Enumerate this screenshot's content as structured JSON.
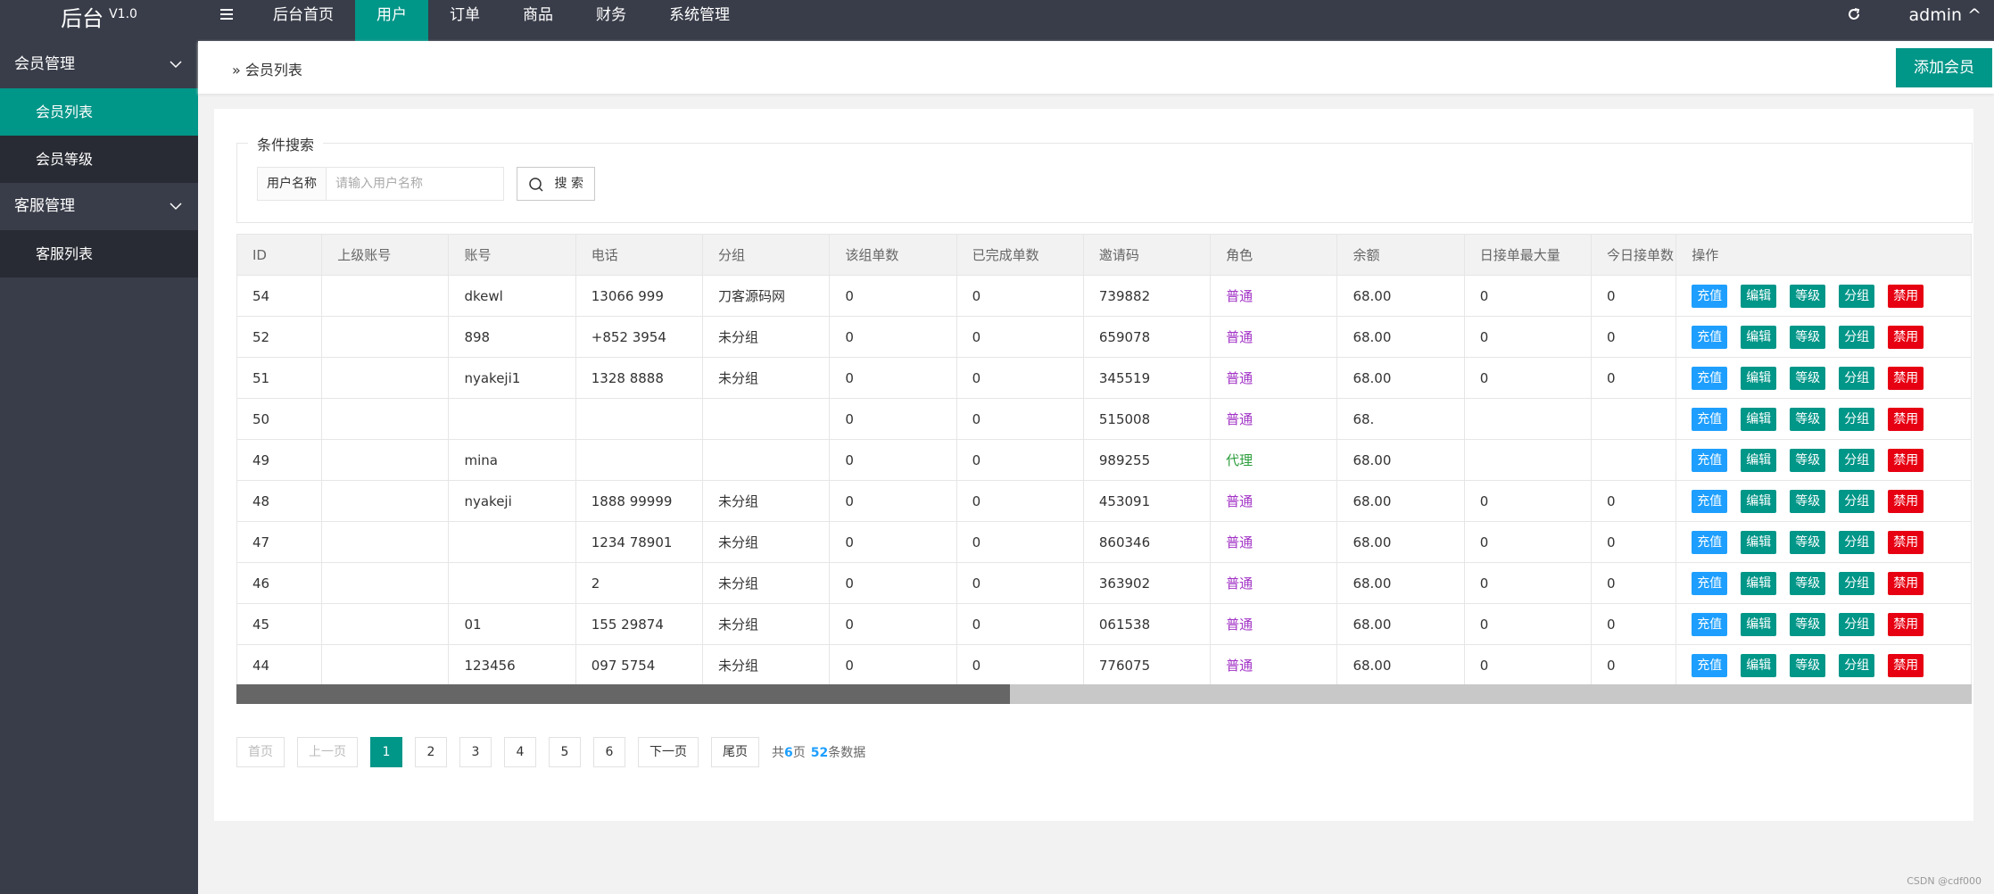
{
  "header": {
    "logo": "后台",
    "version": "V1.0",
    "nav": [
      "后台首页",
      "用户",
      "订单",
      "商品",
      "财务",
      "系统管理"
    ],
    "active_nav": 1,
    "user": "admin"
  },
  "sidebar": [
    {
      "label": "会员管理",
      "children": [
        "会员列表",
        "会员等级"
      ]
    },
    {
      "label": "客服管理",
      "children": [
        "客服列表"
      ]
    }
  ],
  "breadcrumb": "会员列表",
  "add_button": "添加会员",
  "search": {
    "legend": "条件搜索",
    "label": "用户名称",
    "placeholder": "请输入用户名称",
    "button": "搜 索"
  },
  "table": {
    "columns": [
      "ID",
      "上级账号",
      "账号",
      "电话",
      "分组",
      "该组单数",
      "已完成单数",
      "邀请码",
      "角色",
      "余额",
      "日接单最大量",
      "今日接单数",
      "操作"
    ],
    "role_colors": {
      "普通": "#a233c6",
      "代理": "#2a9d3a"
    },
    "actions": [
      {
        "label": "充值",
        "color": "#1e9fff"
      },
      {
        "label": "编辑",
        "color": "#009688"
      },
      {
        "label": "等级",
        "color": "#009688"
      },
      {
        "label": "分组",
        "color": "#009688"
      },
      {
        "label": "禁用",
        "color": "#e60012"
      }
    ],
    "rows": [
      [
        54,
        null,
        "dkewl",
        "13066 999",
        "刀客源码网",
        0,
        0,
        "739882",
        "普通",
        "68.00",
        0,
        0
      ],
      [
        52,
        null,
        "898",
        "+852 3954",
        "未分组",
        0,
        0,
        "659078",
        "普通",
        "68.00",
        0,
        0
      ],
      [
        51,
        null,
        "nyakeji1",
        "1328 8888",
        "未分组",
        0,
        0,
        "345519",
        "普通",
        "68.00",
        0,
        0
      ],
      [
        50,
        null,
        null,
        null,
        null,
        0,
        0,
        "515008",
        "普通",
        "68.",
        null,
        null
      ],
      [
        49,
        null,
        "mina",
        null,
        null,
        0,
        0,
        "989255",
        "代理",
        "68.00",
        null,
        null
      ],
      [
        48,
        null,
        "nyakeji",
        "1888 99999",
        "未分组",
        0,
        0,
        "453091",
        "普通",
        "68.00",
        0,
        0
      ],
      [
        47,
        null,
        null,
        "1234 78901",
        "未分组",
        0,
        0,
        "860346",
        "普通",
        "68.00",
        0,
        0
      ],
      [
        46,
        null,
        null,
        "2",
        "未分组",
        0,
        0,
        "363902",
        "普通",
        "68.00",
        0,
        0
      ],
      [
        45,
        null,
        "01",
        "155 29874",
        "未分组",
        0,
        0,
        "061538",
        "普通",
        "68.00",
        0,
        0
      ],
      [
        44,
        null,
        "123456",
        "097 5754",
        "未分组",
        0,
        0,
        "776075",
        "普通",
        "68.00",
        0,
        0
      ]
    ]
  },
  "pagination": {
    "first": "首页",
    "prev": "上一页",
    "pages": [
      "1",
      "2",
      "3",
      "4",
      "5",
      "6"
    ],
    "current": 0,
    "next": "下一页",
    "last": "尾页",
    "total_prefix": "共",
    "total_pages": 6,
    "pages_suffix": "页",
    "total_records": 52,
    "records_suffix": "条数据"
  },
  "watermark": "CSDN @cdf000"
}
